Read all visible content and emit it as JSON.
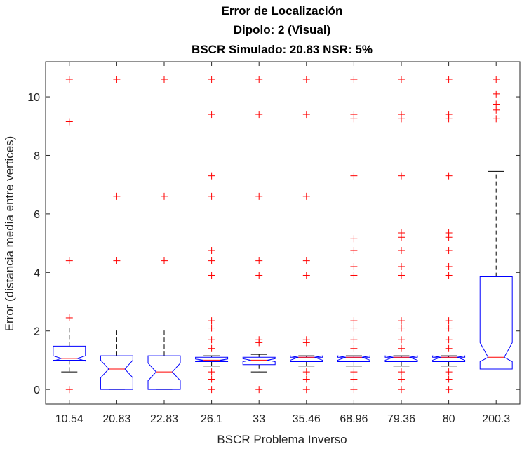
{
  "chart_data": {
    "type": "box",
    "title_lines": [
      "Error de Localización",
      "Dipolo: 2 (Visual)",
      "BSCR Simulado: 20.83 NSR: 5%"
    ],
    "xlabel": "BSCR Problema Inverso",
    "ylabel": "Error (distancia media entre vertices)",
    "ylim": [
      -0.5,
      11.2
    ],
    "yticks": [
      0,
      2,
      4,
      6,
      8,
      10
    ],
    "ytick_labels": [
      "0",
      "2",
      "4",
      "6",
      "8",
      "10"
    ],
    "grid": false,
    "notched": true,
    "categories": [
      "10.54",
      "20.83",
      "22.83",
      "26.1",
      "33",
      "35.46",
      "68.96",
      "79.36",
      "80",
      "200.3"
    ],
    "boxes": [
      {
        "q1": 1.0,
        "median": 1.06,
        "q3": 1.48,
        "notch_lo": 0.97,
        "notch_hi": 1.15,
        "whisker_lo": 0.6,
        "whisker_hi": 2.1,
        "outliers": [
          0.0,
          2.45,
          4.4,
          9.15,
          10.6
        ]
      },
      {
        "q1": 0.0,
        "median": 0.7,
        "q3": 1.15,
        "notch_lo": 0.4,
        "notch_hi": 1.0,
        "whisker_lo": 0.0,
        "whisker_hi": 2.1,
        "outliers": [
          4.4,
          6.6,
          10.6
        ]
      },
      {
        "q1": 0.0,
        "median": 0.6,
        "q3": 1.15,
        "notch_lo": 0.3,
        "notch_hi": 0.9,
        "whisker_lo": 0.0,
        "whisker_hi": 2.1,
        "outliers": [
          4.4,
          6.6,
          10.6
        ]
      },
      {
        "q1": 0.95,
        "median": 1.0,
        "q3": 1.1,
        "notch_lo": 0.97,
        "notch_hi": 1.04,
        "whisker_lo": 0.8,
        "whisker_hi": 1.15,
        "outliers": [
          0.0,
          0.35,
          0.6,
          1.4,
          1.7,
          2.1,
          2.35,
          3.9,
          4.4,
          4.75,
          6.6,
          7.3,
          9.4,
          10.6
        ]
      },
      {
        "q1": 0.85,
        "median": 1.0,
        "q3": 1.1,
        "notch_lo": 0.95,
        "notch_hi": 1.05,
        "whisker_lo": 0.6,
        "whisker_hi": 1.2,
        "outliers": [
          0.0,
          1.6,
          1.7,
          3.9,
          4.4,
          6.6,
          9.4,
          10.6
        ]
      },
      {
        "q1": 0.95,
        "median": 1.1,
        "q3": 1.1,
        "notch_lo": 1.0,
        "notch_hi": 1.15,
        "whisker_lo": 0.8,
        "whisker_hi": 1.15,
        "outliers": [
          0.0,
          0.35,
          0.6,
          1.6,
          1.7,
          3.9,
          4.4,
          6.6,
          9.4,
          10.6
        ]
      },
      {
        "q1": 0.95,
        "median": 1.1,
        "q3": 1.1,
        "notch_lo": 1.0,
        "notch_hi": 1.15,
        "whisker_lo": 0.8,
        "whisker_hi": 1.15,
        "outliers": [
          0.0,
          0.35,
          0.6,
          1.4,
          1.7,
          2.1,
          2.35,
          3.9,
          4.2,
          4.75,
          5.15,
          7.3,
          9.25,
          9.4,
          10.6
        ]
      },
      {
        "q1": 0.95,
        "median": 1.1,
        "q3": 1.1,
        "notch_lo": 1.0,
        "notch_hi": 1.15,
        "whisker_lo": 0.8,
        "whisker_hi": 1.15,
        "outliers": [
          0.0,
          0.35,
          0.6,
          1.4,
          1.7,
          2.1,
          2.35,
          3.9,
          4.2,
          4.75,
          5.2,
          5.35,
          7.3,
          9.25,
          9.4,
          10.6
        ]
      },
      {
        "q1": 0.95,
        "median": 1.1,
        "q3": 1.1,
        "notch_lo": 1.0,
        "notch_hi": 1.15,
        "whisker_lo": 0.8,
        "whisker_hi": 1.15,
        "outliers": [
          0.0,
          0.35,
          0.6,
          1.4,
          1.7,
          2.1,
          2.35,
          3.9,
          4.2,
          4.75,
          5.2,
          5.35,
          7.3,
          9.25,
          9.4,
          10.6
        ]
      },
      {
        "q1": 0.7,
        "median": 1.1,
        "q3": 3.85,
        "notch_lo": 0.95,
        "notch_hi": 1.6,
        "whisker_lo": 0.7,
        "whisker_hi": 7.45,
        "outliers": [
          9.25,
          9.55,
          9.75,
          10.1,
          10.6
        ]
      }
    ],
    "colors": {
      "box": "#0000ff",
      "median": "#ff0000",
      "whisker": "#000000",
      "outlier": "#ff0000",
      "axis": "#262626"
    }
  }
}
